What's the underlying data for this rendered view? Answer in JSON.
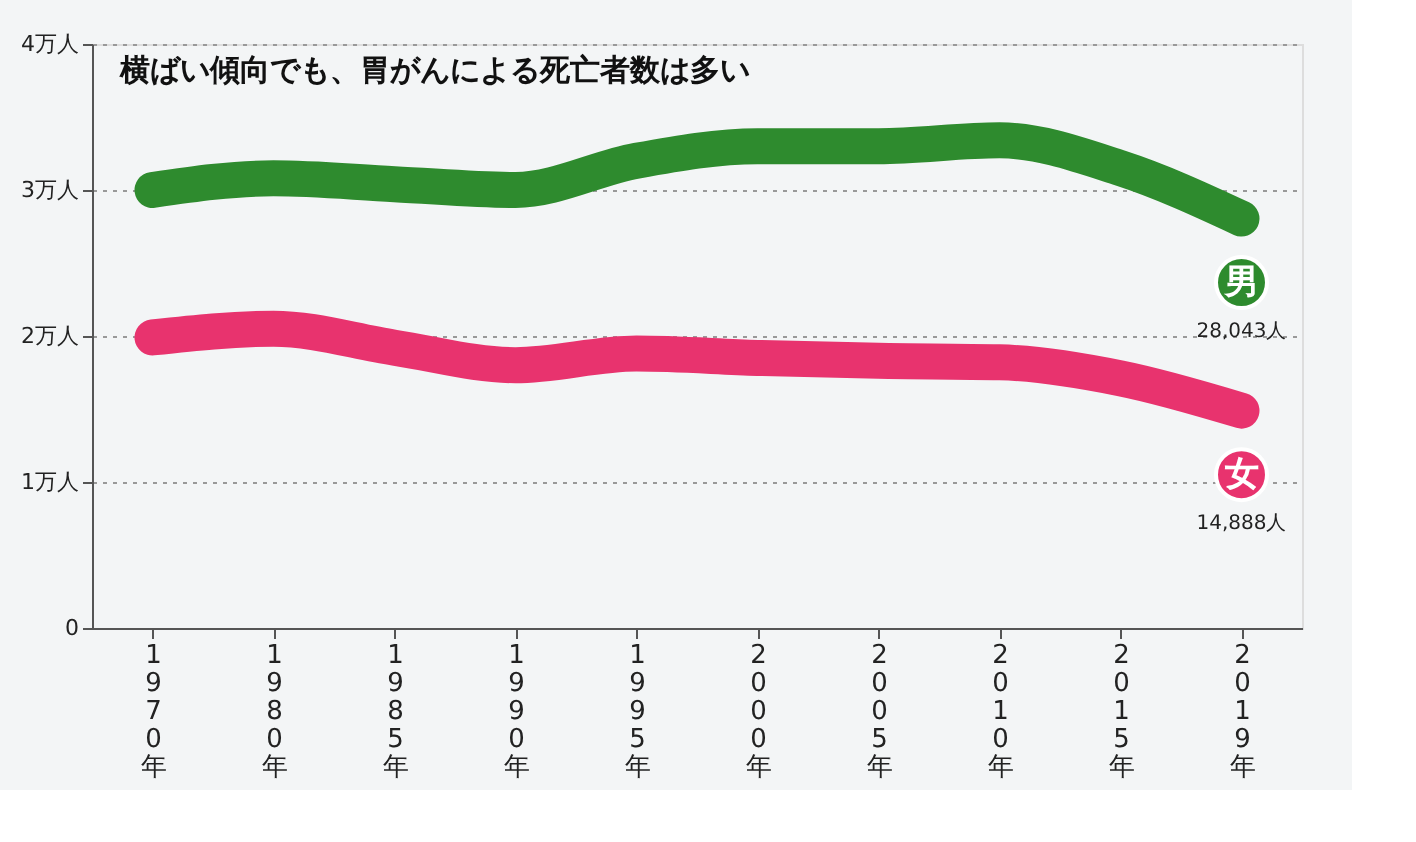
{
  "chart_data": {
    "type": "line",
    "title": "横ばい傾向でも、胃がんによる死亡者数は多い",
    "categories": [
      "1970年",
      "1980年",
      "1985年",
      "1990年",
      "1995年",
      "2000年",
      "2005年",
      "2010年",
      "2015年",
      "2019年"
    ],
    "series": [
      {
        "name": "男",
        "color": "#2e8b2e",
        "values": [
          3.0,
          3.08,
          3.04,
          3.0,
          3.2,
          3.3,
          3.3,
          3.34,
          3.15,
          2.8043
        ]
      },
      {
        "name": "女",
        "color": "#e8336e",
        "values": [
          1.99,
          2.05,
          1.92,
          1.8,
          1.88,
          1.85,
          1.83,
          1.82,
          1.71,
          1.4888
        ]
      }
    ],
    "annotations": [
      "28,043人",
      "14,888人"
    ],
    "ylim": [
      0,
      4
    ],
    "yticks": [
      0,
      {
        "value": 1,
        "label": "1万人"
      },
      {
        "value": 2,
        "label": "2万人"
      },
      {
        "value": 3,
        "label": "3万人"
      },
      {
        "value": 4,
        "label": "4万人"
      }
    ],
    "grid": "y",
    "legend": false,
    "line_style": "solid"
  }
}
